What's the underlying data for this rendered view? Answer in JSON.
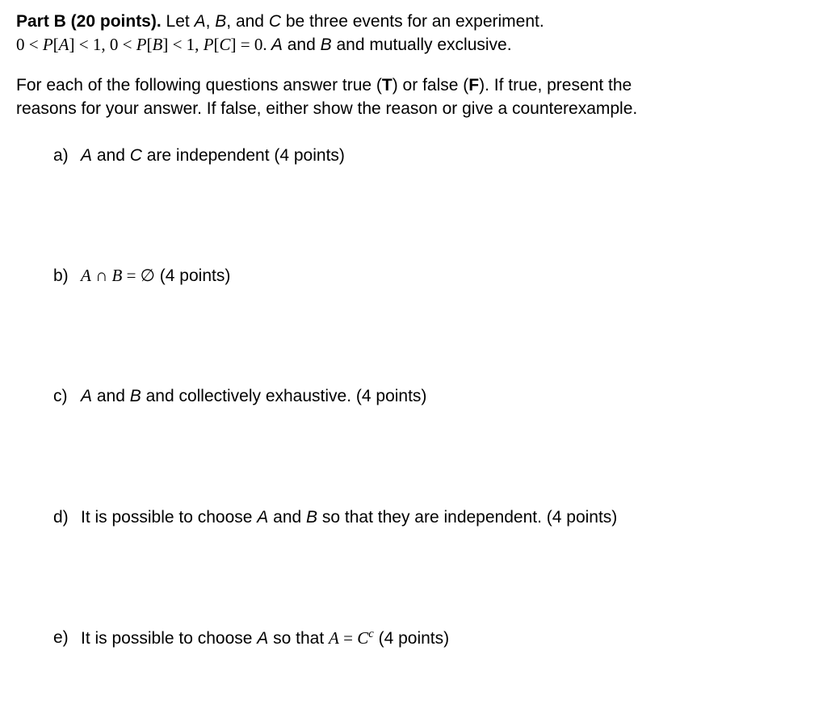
{
  "header": {
    "part_title": "Part B (20 points).",
    "intro_text": " Let ",
    "var_A": "A",
    "comma1": ", ",
    "var_B": "B",
    "comma2": ", and ",
    "var_C": "C",
    "intro_text2": " be three events for an experiment.",
    "conditions_line1_a": "0 < ",
    "conditions_line1_b": "P",
    "conditions_line1_c": "[",
    "conditions_line1_d": "A",
    "conditions_line1_e": "] < 1, 0 < ",
    "conditions_line1_f": "P",
    "conditions_line1_g": "[",
    "conditions_line1_h": "B",
    "conditions_line1_i": "] < 1, ",
    "conditions_line1_j": "P",
    "conditions_line1_k": "[",
    "conditions_line1_l": "C",
    "conditions_line1_m": "] = 0. ",
    "conditions_line1_n": "A",
    "conditions_line1_o": " and ",
    "conditions_line1_p": "B",
    "conditions_line1_q": " and mutually exclusive."
  },
  "instructions": {
    "line1a": "For each of the following questions answer true (",
    "line1b": "T",
    "line1c": ") or false (",
    "line1d": "F",
    "line1e": "). If true, present the",
    "line2": "reasons for your answer. If false, either show the reason or give a counterexample."
  },
  "questions": {
    "a": {
      "label": "a)",
      "text_pre": "",
      "var1": "A",
      "mid1": " and ",
      "var2": "C",
      "text_post": " are independent (4 points)"
    },
    "b": {
      "label": "b)",
      "var1": "A",
      "op": " ∩ ",
      "var2": "B",
      "eq": " = ∅",
      "points": "  (4 points)"
    },
    "c": {
      "label": "c)",
      "var1": "A",
      "mid1": " and ",
      "var2": "B",
      "text_post": " and collectively exhaustive.  (4 points)"
    },
    "d": {
      "label": "d)",
      "text_pre": "It is possible to choose ",
      "var1": "A",
      "mid1": " and ",
      "var2": "B",
      "text_post": " so that they are independent.  (4 points)"
    },
    "e": {
      "label": "e)",
      "text_pre": "It is possible to choose ",
      "var1": "A",
      "mid1": " so that ",
      "var2": "A",
      "eq": " = ",
      "var3": "C",
      "sup": "c",
      "points": "  (4 points)"
    }
  }
}
